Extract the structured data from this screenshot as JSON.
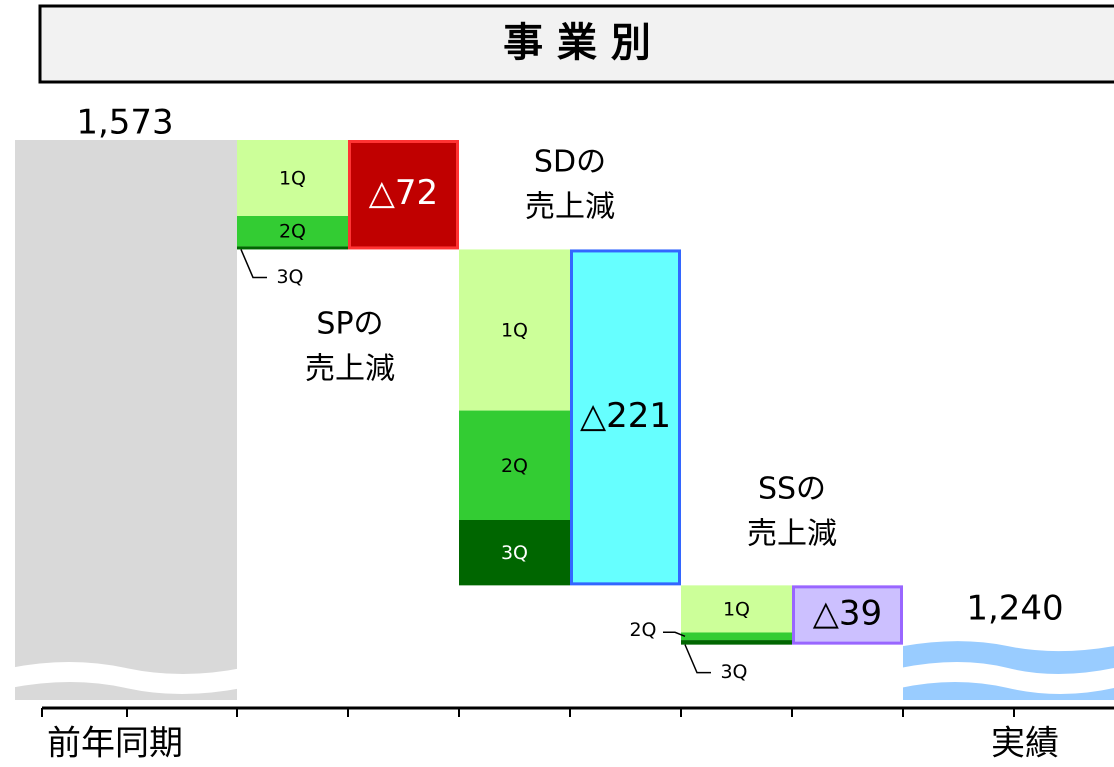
{
  "chart_data": {
    "type": "waterfall",
    "title": "事 業 別",
    "start": {
      "label": "前年同期",
      "value": 1573,
      "value_label": "1,573",
      "color": "#d9d9d9"
    },
    "end": {
      "label": "実績",
      "value": 1240,
      "value_label": "1,240",
      "color": "#99ccff"
    },
    "steps": [
      {
        "name": [
          "SPの",
          "売上減"
        ],
        "value": -72,
        "value_label": "△72",
        "color": "#c00000",
        "border": "#ff3333",
        "text_color": "#ffffff",
        "segments": [
          {
            "name": "1Q",
            "value": -50,
            "color": "#ccff99"
          },
          {
            "name": "2Q",
            "value": -20,
            "color": "#33cc33"
          },
          {
            "name": "3Q",
            "value": -2,
            "color": "#006600"
          }
        ]
      },
      {
        "name": [
          "SDの",
          "売上減"
        ],
        "value": -221,
        "value_label": "△221",
        "color": "#66ffff",
        "border": "#3366ff",
        "text_color": "#000000",
        "segments": [
          {
            "name": "1Q",
            "value": -106,
            "color": "#ccff99"
          },
          {
            "name": "2Q",
            "value": -72,
            "color": "#33cc33"
          },
          {
            "name": "3Q",
            "value": -43,
            "color": "#006600"
          }
        ]
      },
      {
        "name": [
          "SSの",
          "売上減"
        ],
        "value": -39,
        "value_label": "△39",
        "color": "#ccc0ff",
        "border": "#9966ff",
        "text_color": "#000000",
        "segments": [
          {
            "name": "1Q",
            "value": -31,
            "color": "#ccff99"
          },
          {
            "name": "2Q",
            "value": -5,
            "color": "#33cc33"
          },
          {
            "name": "3Q",
            "value": -3,
            "color": "#006600"
          }
        ]
      }
    ]
  }
}
